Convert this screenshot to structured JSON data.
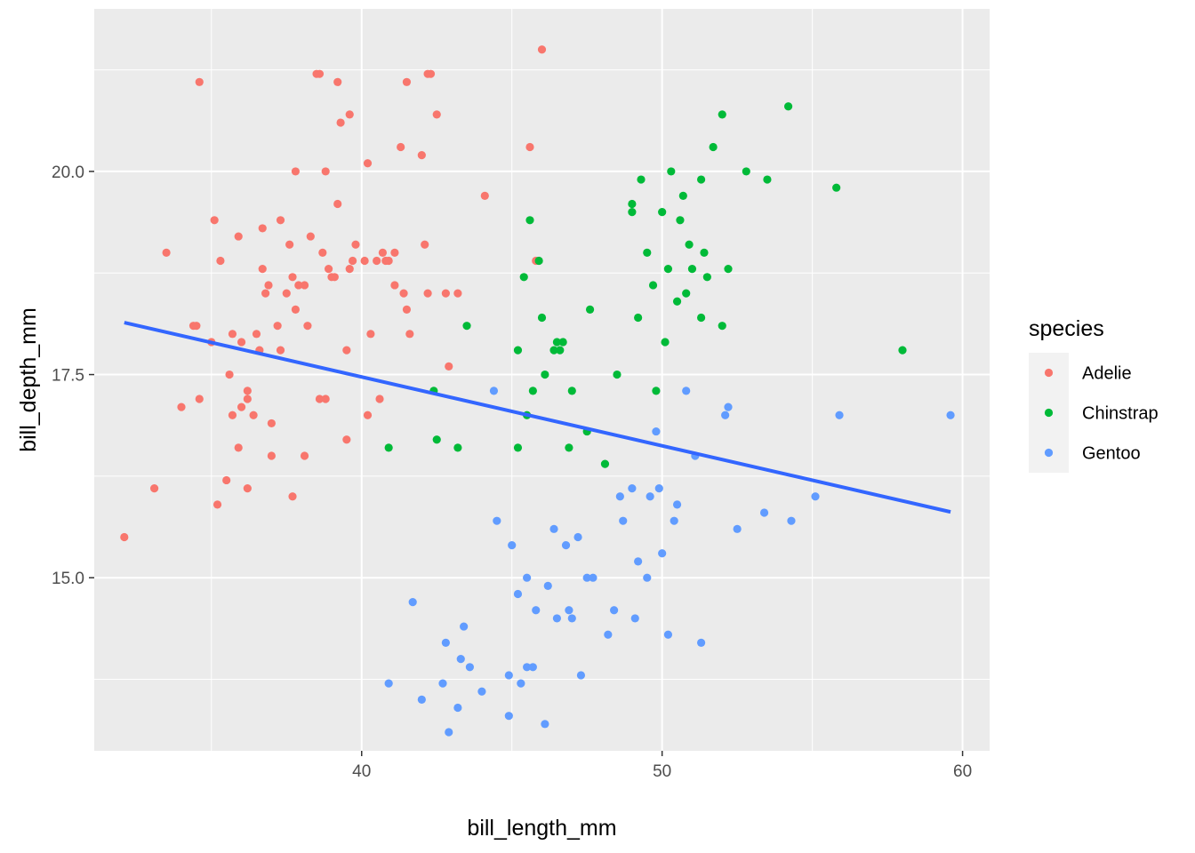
{
  "chart_data": {
    "type": "scatter",
    "title": "",
    "xlabel": "bill_length_mm",
    "ylabel": "bill_depth_mm",
    "xlim": [
      31.1,
      60.9
    ],
    "ylim": [
      12.87,
      22.0
    ],
    "x_ticks": [
      40,
      50,
      60
    ],
    "y_ticks": [
      15,
      17.5,
      20
    ],
    "x_tick_labels": [
      "40",
      "50",
      "60"
    ],
    "y_tick_labels": [
      "15.0",
      "17.5",
      "20.0"
    ],
    "grid": true,
    "panel_background": "#ebebeb",
    "grid_color": "#ffffff",
    "legend": {
      "title": "species",
      "placement": "right",
      "entries": [
        {
          "label": "Adelie",
          "color": "#f8766d"
        },
        {
          "label": "Chinstrap",
          "color": "#00ba38"
        },
        {
          "label": "Gentoo",
          "color": "#619cff"
        }
      ]
    },
    "series": [
      {
        "name": "Adelie",
        "color": "#f8766d",
        "points": [
          [
            32.1,
            15.5
          ],
          [
            33.1,
            16.1
          ],
          [
            33.5,
            19.0
          ],
          [
            34.0,
            17.1
          ],
          [
            34.4,
            18.1
          ],
          [
            34.5,
            18.1
          ],
          [
            34.6,
            21.1
          ],
          [
            34.6,
            17.2
          ],
          [
            35.0,
            17.9
          ],
          [
            35.1,
            19.4
          ],
          [
            35.2,
            15.9
          ],
          [
            35.3,
            18.9
          ],
          [
            35.5,
            16.2
          ],
          [
            35.6,
            17.5
          ],
          [
            35.7,
            17.0
          ],
          [
            35.7,
            18.0
          ],
          [
            35.9,
            16.6
          ],
          [
            35.9,
            19.2
          ],
          [
            36.0,
            17.1
          ],
          [
            36.0,
            17.9
          ],
          [
            36.2,
            17.2
          ],
          [
            36.2,
            16.1
          ],
          [
            36.2,
            17.3
          ],
          [
            36.4,
            17.0
          ],
          [
            36.5,
            18.0
          ],
          [
            36.6,
            17.8
          ],
          [
            36.7,
            18.8
          ],
          [
            36.7,
            19.3
          ],
          [
            36.8,
            18.5
          ],
          [
            36.9,
            18.6
          ],
          [
            37.0,
            16.9
          ],
          [
            37.0,
            16.5
          ],
          [
            37.2,
            18.1
          ],
          [
            37.3,
            19.4
          ],
          [
            37.3,
            17.8
          ],
          [
            37.5,
            18.5
          ],
          [
            37.6,
            19.1
          ],
          [
            37.7,
            18.7
          ],
          [
            37.7,
            16.0
          ],
          [
            37.8,
            20.0
          ],
          [
            37.8,
            18.3
          ],
          [
            37.9,
            18.6
          ],
          [
            38.1,
            18.6
          ],
          [
            38.1,
            16.5
          ],
          [
            38.2,
            18.1
          ],
          [
            38.3,
            19.2
          ],
          [
            38.5,
            21.2
          ],
          [
            38.6,
            17.2
          ],
          [
            38.6,
            21.2
          ],
          [
            38.7,
            19.0
          ],
          [
            38.8,
            17.2
          ],
          [
            38.8,
            20.0
          ],
          [
            38.9,
            18.8
          ],
          [
            39.0,
            18.7
          ],
          [
            39.1,
            18.7
          ],
          [
            39.2,
            21.1
          ],
          [
            39.2,
            19.6
          ],
          [
            39.3,
            20.6
          ],
          [
            39.5,
            17.8
          ],
          [
            39.5,
            16.7
          ],
          [
            39.6,
            18.8
          ],
          [
            39.6,
            20.7
          ],
          [
            39.7,
            18.9
          ],
          [
            39.8,
            19.1
          ],
          [
            40.1,
            18.9
          ],
          [
            40.2,
            20.1
          ],
          [
            40.2,
            17.0
          ],
          [
            40.3,
            18.0
          ],
          [
            40.5,
            18.9
          ],
          [
            40.6,
            17.2
          ],
          [
            40.7,
            19.0
          ],
          [
            40.8,
            18.9
          ],
          [
            40.9,
            18.9
          ],
          [
            41.1,
            19.0
          ],
          [
            41.1,
            18.6
          ],
          [
            41.3,
            20.3
          ],
          [
            41.4,
            18.5
          ],
          [
            41.5,
            18.3
          ],
          [
            41.5,
            21.1
          ],
          [
            41.6,
            18.0
          ],
          [
            42.0,
            20.2
          ],
          [
            42.1,
            19.1
          ],
          [
            42.2,
            18.5
          ],
          [
            42.2,
            21.2
          ],
          [
            42.3,
            21.2
          ],
          [
            42.5,
            20.7
          ],
          [
            42.8,
            18.5
          ],
          [
            42.9,
            17.6
          ],
          [
            43.2,
            18.5
          ],
          [
            44.1,
            19.7
          ],
          [
            45.6,
            20.3
          ],
          [
            45.8,
            18.9
          ],
          [
            46.0,
            21.5
          ]
        ]
      },
      {
        "name": "Chinstrap",
        "color": "#00ba38",
        "points": [
          [
            40.9,
            16.6
          ],
          [
            42.4,
            17.3
          ],
          [
            42.5,
            16.7
          ],
          [
            43.2,
            16.6
          ],
          [
            43.5,
            18.1
          ],
          [
            45.2,
            17.8
          ],
          [
            45.2,
            16.6
          ],
          [
            45.4,
            18.7
          ],
          [
            45.5,
            17.0
          ],
          [
            45.6,
            19.4
          ],
          [
            45.7,
            17.3
          ],
          [
            45.9,
            18.9
          ],
          [
            46.0,
            18.2
          ],
          [
            46.1,
            17.5
          ],
          [
            46.4,
            17.8
          ],
          [
            46.5,
            17.9
          ],
          [
            46.6,
            17.8
          ],
          [
            46.7,
            17.9
          ],
          [
            46.9,
            16.6
          ],
          [
            47.0,
            17.3
          ],
          [
            47.5,
            16.8
          ],
          [
            47.6,
            18.3
          ],
          [
            48.1,
            16.4
          ],
          [
            48.5,
            17.5
          ],
          [
            49.0,
            19.5
          ],
          [
            49.0,
            19.6
          ],
          [
            49.2,
            18.2
          ],
          [
            49.3,
            19.9
          ],
          [
            49.5,
            19.0
          ],
          [
            49.7,
            18.6
          ],
          [
            49.8,
            17.3
          ],
          [
            50.0,
            19.5
          ],
          [
            50.1,
            17.9
          ],
          [
            50.2,
            18.8
          ],
          [
            50.3,
            20.0
          ],
          [
            50.5,
            18.4
          ],
          [
            50.6,
            19.4
          ],
          [
            50.7,
            19.7
          ],
          [
            50.8,
            18.5
          ],
          [
            50.9,
            19.1
          ],
          [
            51.0,
            18.8
          ],
          [
            51.3,
            18.2
          ],
          [
            51.3,
            19.9
          ],
          [
            51.4,
            19.0
          ],
          [
            51.5,
            18.7
          ],
          [
            51.7,
            20.3
          ],
          [
            52.0,
            18.1
          ],
          [
            52.0,
            20.7
          ],
          [
            52.2,
            18.8
          ],
          [
            52.8,
            20.0
          ],
          [
            53.5,
            19.9
          ],
          [
            54.2,
            20.8
          ],
          [
            55.8,
            19.8
          ],
          [
            58.0,
            17.8
          ]
        ]
      },
      {
        "name": "Gentoo",
        "color": "#619cff",
        "points": [
          [
            40.9,
            13.7
          ],
          [
            41.7,
            14.7
          ],
          [
            42.0,
            13.5
          ],
          [
            42.7,
            13.7
          ],
          [
            42.8,
            14.2
          ],
          [
            42.9,
            13.1
          ],
          [
            43.2,
            13.4
          ],
          [
            43.3,
            14.0
          ],
          [
            43.4,
            14.4
          ],
          [
            43.6,
            13.9
          ],
          [
            44.0,
            13.6
          ],
          [
            44.4,
            17.3
          ],
          [
            44.5,
            15.7
          ],
          [
            44.9,
            13.8
          ],
          [
            44.9,
            13.3
          ],
          [
            45.0,
            15.4
          ],
          [
            45.2,
            14.8
          ],
          [
            45.3,
            13.7
          ],
          [
            45.5,
            13.9
          ],
          [
            45.5,
            15.0
          ],
          [
            45.7,
            13.9
          ],
          [
            45.8,
            14.6
          ],
          [
            46.1,
            13.2
          ],
          [
            46.2,
            14.9
          ],
          [
            46.4,
            15.6
          ],
          [
            46.5,
            14.5
          ],
          [
            46.8,
            15.4
          ],
          [
            46.9,
            14.6
          ],
          [
            47.0,
            14.5
          ],
          [
            47.2,
            15.5
          ],
          [
            47.3,
            13.8
          ],
          [
            47.5,
            15.0
          ],
          [
            47.7,
            15.0
          ],
          [
            48.2,
            14.3
          ],
          [
            48.4,
            14.6
          ],
          [
            48.6,
            16.0
          ],
          [
            48.7,
            15.7
          ],
          [
            49.0,
            16.1
          ],
          [
            49.1,
            14.5
          ],
          [
            49.2,
            15.2
          ],
          [
            49.5,
            15.0
          ],
          [
            49.6,
            16.0
          ],
          [
            49.8,
            16.8
          ],
          [
            49.9,
            16.1
          ],
          [
            50.0,
            15.3
          ],
          [
            50.2,
            14.3
          ],
          [
            50.4,
            15.7
          ],
          [
            50.5,
            15.9
          ],
          [
            50.8,
            17.3
          ],
          [
            51.1,
            16.5
          ],
          [
            51.3,
            14.2
          ],
          [
            52.1,
            17.0
          ],
          [
            52.2,
            17.1
          ],
          [
            52.5,
            15.6
          ],
          [
            53.4,
            15.8
          ],
          [
            54.3,
            15.7
          ],
          [
            55.1,
            16.0
          ],
          [
            55.9,
            17.0
          ],
          [
            59.6,
            17.0
          ]
        ]
      }
    ],
    "trend_line": {
      "method": "lm",
      "color": "#3366ff",
      "x_range": [
        32.1,
        59.6
      ],
      "y_range": [
        18.14,
        15.81
      ]
    }
  }
}
